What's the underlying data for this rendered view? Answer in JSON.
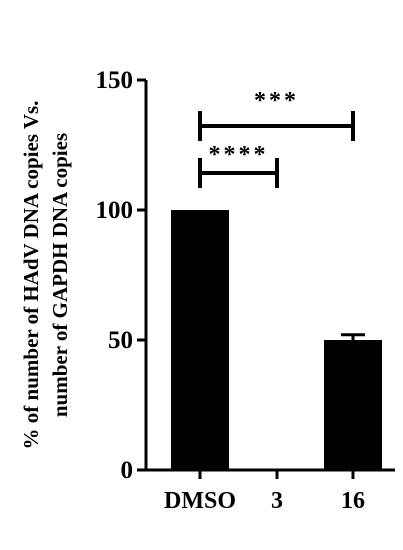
{
  "chart_data": {
    "type": "bar",
    "ylabel_lines": [
      "% of number of HAdV DNA copies Vs.",
      "number of GAPDH DNA copies"
    ],
    "xlabel": "",
    "title": "",
    "categories": [
      "DMSO",
      "3",
      "16"
    ],
    "values": [
      100,
      0,
      50
    ],
    "errors": [
      0,
      0,
      2
    ],
    "ylim": [
      0,
      150
    ],
    "yticks": [
      0,
      50,
      100,
      150
    ],
    "bar_color": "#000000",
    "grid": false,
    "significance": [
      {
        "from": "DMSO",
        "to": "3",
        "label": "****"
      },
      {
        "from": "DMSO",
        "to": "16",
        "label": "***"
      }
    ]
  }
}
